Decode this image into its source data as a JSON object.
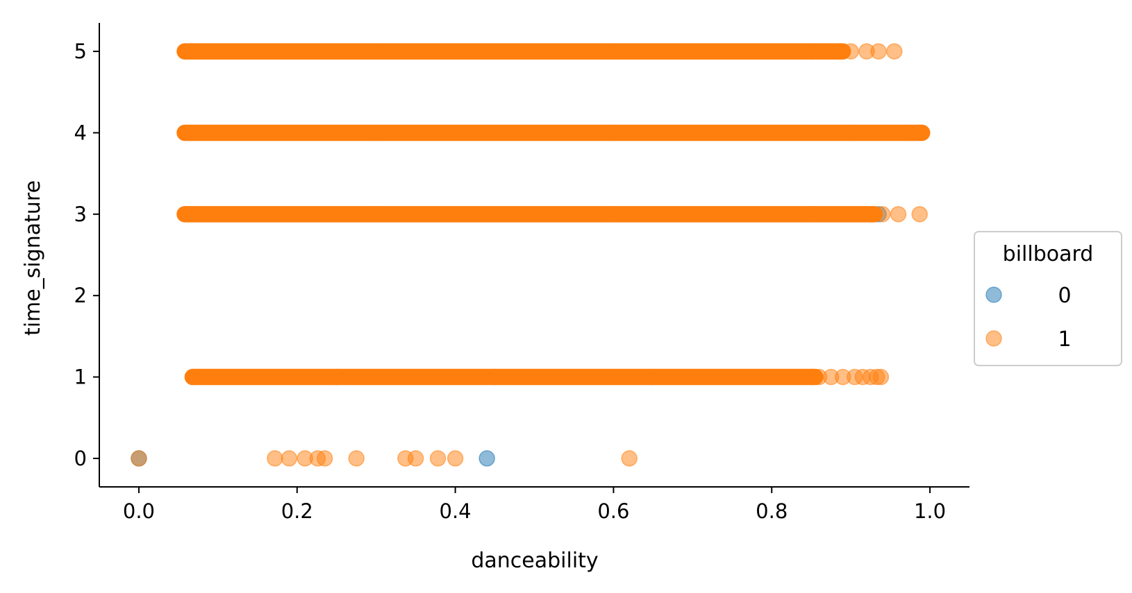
{
  "chart_data": {
    "type": "scatter",
    "title": "",
    "xlabel": "danceability",
    "ylabel": "time_signature",
    "xlim": [
      -0.05,
      1.05
    ],
    "ylim": [
      -0.35,
      5.35
    ],
    "xticks": [
      0.0,
      0.2,
      0.4,
      0.6,
      0.8,
      1.0
    ],
    "xtick_labels": [
      "0.0",
      "0.2",
      "0.4",
      "0.6",
      "0.8",
      "1.0"
    ],
    "yticks": [
      0,
      1,
      2,
      3,
      4,
      5
    ],
    "ytick_labels": [
      "0",
      "1",
      "2",
      "3",
      "4",
      "5"
    ],
    "grid": false,
    "legend": {
      "title": "billboard",
      "placement": "center-right outside"
    },
    "series": [
      {
        "name": "0",
        "color": "#1f77b4",
        "points": [
          {
            "x": 0.0,
            "y": 0
          },
          {
            "x": 0.44,
            "y": 0
          },
          {
            "x": 0.07,
            "y": 1
          },
          {
            "x": 0.25,
            "y": 1
          },
          {
            "x": 0.45,
            "y": 1
          },
          {
            "x": 0.65,
            "y": 1
          },
          {
            "x": 0.85,
            "y": 1
          },
          {
            "x": 0.06,
            "y": 3
          },
          {
            "x": 0.3,
            "y": 3
          },
          {
            "x": 0.6,
            "y": 3
          },
          {
            "x": 0.85,
            "y": 3
          },
          {
            "x": 0.935,
            "y": 3
          },
          {
            "x": 0.06,
            "y": 4
          },
          {
            "x": 0.3,
            "y": 4
          },
          {
            "x": 0.6,
            "y": 4
          },
          {
            "x": 0.9,
            "y": 4
          },
          {
            "x": 0.06,
            "y": 5
          },
          {
            "x": 0.3,
            "y": 5
          },
          {
            "x": 0.6,
            "y": 5
          },
          {
            "x": 0.85,
            "y": 5
          }
        ]
      },
      {
        "name": "1",
        "color": "#ff7f0e",
        "points": [
          {
            "x": 0.0,
            "y": 0
          },
          {
            "x": 0.172,
            "y": 0
          },
          {
            "x": 0.19,
            "y": 0
          },
          {
            "x": 0.21,
            "y": 0
          },
          {
            "x": 0.226,
            "y": 0
          },
          {
            "x": 0.235,
            "y": 0
          },
          {
            "x": 0.275,
            "y": 0
          },
          {
            "x": 0.337,
            "y": 0
          },
          {
            "x": 0.35,
            "y": 0
          },
          {
            "x": 0.378,
            "y": 0
          },
          {
            "x": 0.4,
            "y": 0
          },
          {
            "x": 0.62,
            "y": 0
          },
          {
            "x": 0.86,
            "y": 1
          },
          {
            "x": 0.875,
            "y": 1
          },
          {
            "x": 0.89,
            "y": 1
          },
          {
            "x": 0.905,
            "y": 1
          },
          {
            "x": 0.915,
            "y": 1
          },
          {
            "x": 0.925,
            "y": 1
          },
          {
            "x": 0.933,
            "y": 1
          },
          {
            "x": 0.938,
            "y": 1
          },
          {
            "x": 0.94,
            "y": 3
          },
          {
            "x": 0.96,
            "y": 3
          },
          {
            "x": 0.987,
            "y": 3
          },
          {
            "x": 0.975,
            "y": 4
          },
          {
            "x": 0.985,
            "y": 4
          },
          {
            "x": 0.99,
            "y": 4
          },
          {
            "x": 0.9,
            "y": 5
          },
          {
            "x": 0.92,
            "y": 5
          },
          {
            "x": 0.935,
            "y": 5
          },
          {
            "x": 0.955,
            "y": 5
          }
        ],
        "dense_bands": [
          {
            "y": 1,
            "x_start": 0.068,
            "x_end": 0.855
          },
          {
            "y": 3,
            "x_start": 0.058,
            "x_end": 0.93
          },
          {
            "y": 4,
            "x_start": 0.058,
            "x_end": 0.99
          },
          {
            "y": 5,
            "x_start": 0.058,
            "x_end": 0.89
          }
        ]
      }
    ]
  }
}
